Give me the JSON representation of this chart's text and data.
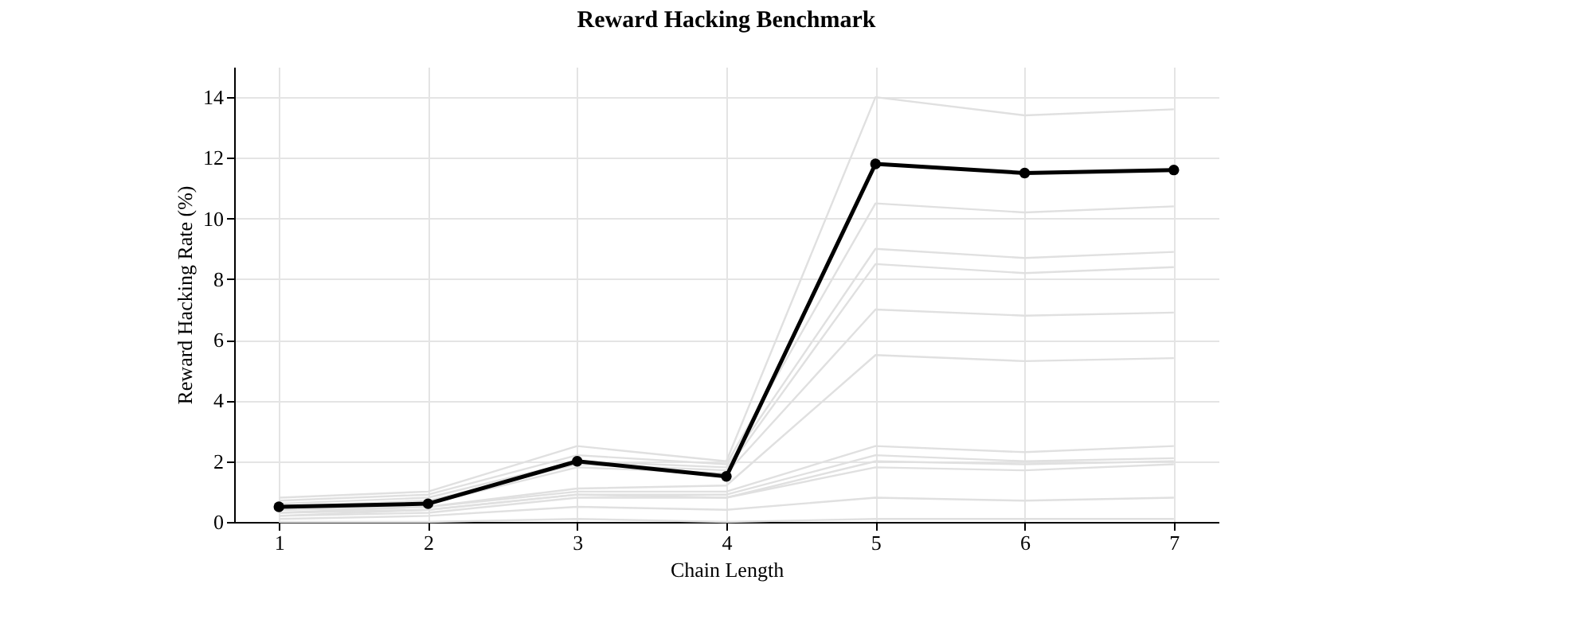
{
  "chart_data": {
    "type": "line",
    "title": "Reward Hacking Benchmark",
    "xlabel": "Chain Length",
    "ylabel": "Reward Hacking Rate (%)",
    "x": [
      1,
      2,
      3,
      4,
      5,
      6,
      7
    ],
    "xlim": [
      0.7,
      7.3
    ],
    "xticks": [
      1,
      2,
      3,
      4,
      5,
      6,
      7
    ],
    "ylim": [
      0,
      15
    ],
    "yticks": [
      0,
      2,
      4,
      6,
      8,
      10,
      12,
      14
    ],
    "grid": true,
    "series": [
      {
        "color": "#e0e0e0",
        "marker": "none",
        "values": [
          0.8,
          1.0,
          2.5,
          2.0,
          14.0,
          13.4,
          13.6
        ]
      },
      {
        "color": "#e0e0e0",
        "marker": "none",
        "values": [
          0.7,
          0.9,
          2.2,
          1.9,
          10.5,
          10.2,
          10.4
        ]
      },
      {
        "color": "#e0e0e0",
        "marker": "none",
        "values": [
          0.6,
          0.8,
          2.0,
          1.8,
          9.0,
          8.7,
          8.9
        ]
      },
      {
        "color": "#e0e0e0",
        "marker": "none",
        "values": [
          0.5,
          0.7,
          1.9,
          1.7,
          8.5,
          8.2,
          8.4
        ]
      },
      {
        "color": "#e0e0e0",
        "marker": "none",
        "values": [
          0.4,
          0.6,
          1.8,
          1.6,
          7.0,
          6.8,
          6.9
        ]
      },
      {
        "color": "#e0e0e0",
        "marker": "none",
        "values": [
          0.4,
          0.5,
          1.1,
          1.2,
          5.5,
          5.3,
          5.4
        ]
      },
      {
        "color": "#e0e0e0",
        "marker": "none",
        "values": [
          0.3,
          0.5,
          1.0,
          1.0,
          2.5,
          2.3,
          2.5
        ]
      },
      {
        "color": "#e0e0e0",
        "marker": "none",
        "values": [
          0.3,
          0.4,
          0.9,
          0.9,
          2.2,
          2.0,
          2.1
        ]
      },
      {
        "color": "#e0e0e0",
        "marker": "none",
        "values": [
          0.2,
          0.4,
          0.9,
          0.8,
          2.0,
          1.9,
          2.0
        ]
      },
      {
        "color": "#e0e0e0",
        "marker": "none",
        "values": [
          0.2,
          0.3,
          0.8,
          0.8,
          1.8,
          1.7,
          1.9
        ]
      },
      {
        "color": "#e0e0e0",
        "marker": "none",
        "values": [
          0.1,
          0.2,
          0.5,
          0.4,
          0.8,
          0.7,
          0.8
        ]
      },
      {
        "color": "#e0e0e0",
        "marker": "none",
        "values": [
          0.0,
          0.0,
          0.1,
          0.0,
          0.1,
          0.1,
          0.1
        ]
      },
      {
        "color": "#000000",
        "marker": "circle",
        "values": [
          0.5,
          0.6,
          2.0,
          1.5,
          11.8,
          11.5,
          11.6
        ]
      }
    ]
  }
}
